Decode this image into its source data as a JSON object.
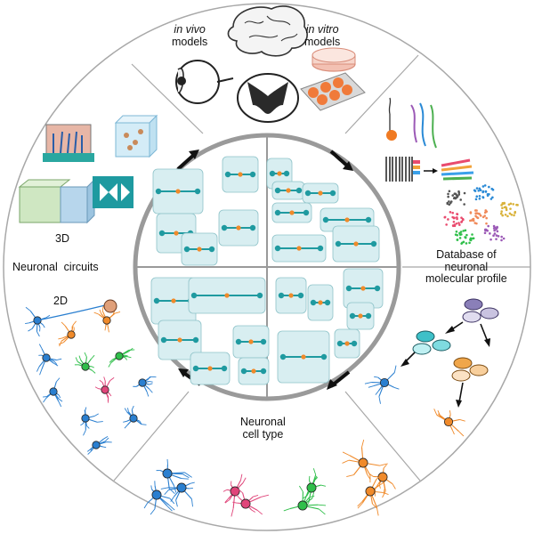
{
  "outer_ring": {
    "sections": [
      {
        "name": "models",
        "lines": [
          {
            "italic": "in vivo",
            "plain": ""
          },
          {
            "italic": "",
            "plain": "models"
          }
        ]
      },
      {
        "name": "models-vitro",
        "lines": [
          {
            "italic": "in vitro",
            "plain": ""
          },
          {
            "italic": "",
            "plain": "models"
          }
        ]
      },
      {
        "name": "database",
        "lines": [
          "Database of",
          "neuronal",
          "molecular profile"
        ]
      },
      {
        "name": "cell-type",
        "lines": [
          "Neuronal",
          "cell type"
        ]
      },
      {
        "name": "circuits",
        "labels": {
          "three_d": "3D",
          "title": "Neuronal  circuits",
          "two_d": "2D"
        }
      }
    ]
  },
  "labels": {
    "in_vivo_italic": "in vivo",
    "in_vivo_rest": "models",
    "in_vitro_italic": "in vitro",
    "in_vitro_rest": "models",
    "db_line1": "Database of",
    "db_line2": "neuronal",
    "db_line3": "molecular profile",
    "cell_line1": "Neuronal",
    "cell_line2": "cell type",
    "three_d": "3D",
    "circuits": "Neuronal  circuits",
    "two_d": "2D"
  },
  "colors": {
    "ring_stroke": "#a8a8a8",
    "inner_ring": "#9a9a9a",
    "chip_fill": "#d8eef1",
    "chip_teal": "#1f9aa0",
    "arrow": "#111111",
    "neuron_blue": "#2a7fd0",
    "neuron_pink": "#e0457a",
    "neuron_green": "#2fbf4a",
    "neuron_orange": "#f08a2a"
  },
  "icons": [
    "brain-icon",
    "eye-icon",
    "spinal-cord-icon",
    "petri-dish-icon",
    "organoid-plate-icon",
    "microfluidic-chip-icon",
    "neuron-icon",
    "cell-cluster-icon",
    "barcode-icon"
  ]
}
